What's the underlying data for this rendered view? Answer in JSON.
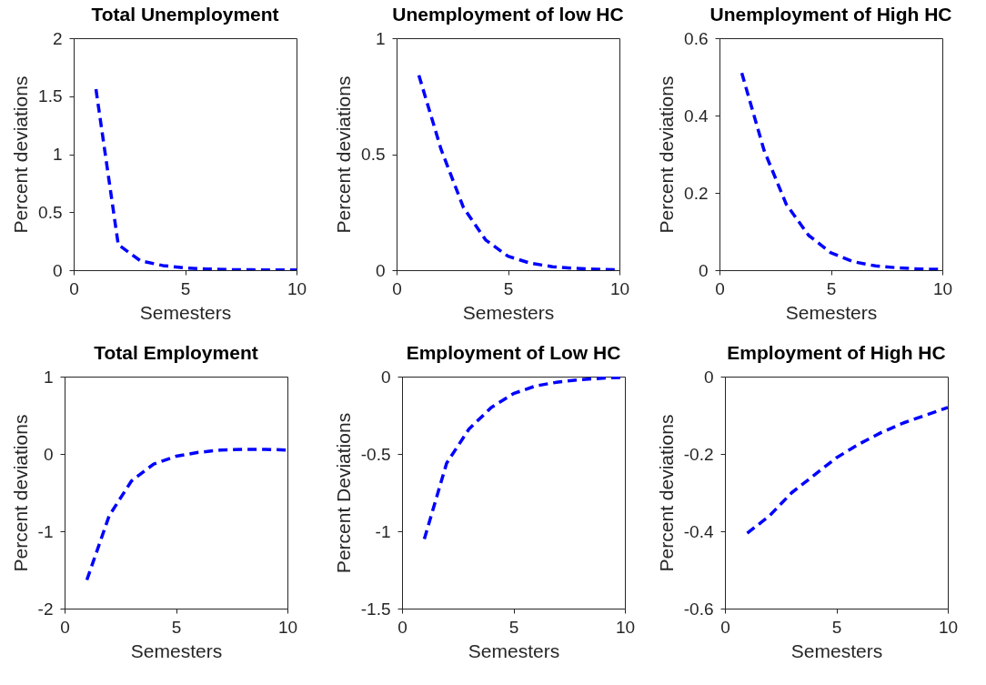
{
  "chart_data": [
    {
      "type": "line",
      "title": "Total Unemployment",
      "xlabel": "Semesters",
      "ylabel": "Percent deviations",
      "x": [
        1,
        2,
        3,
        4,
        5,
        6,
        7,
        8,
        9,
        10
      ],
      "series": [
        {
          "color": "#0000ff",
          "values": [
            1.56,
            0.22,
            0.08,
            0.04,
            0.02,
            0.01,
            0.005,
            0.003,
            0.002,
            0.001
          ]
        }
      ],
      "xlim": [
        0,
        10
      ],
      "xticks": [
        0,
        5,
        10
      ],
      "ylim": [
        0,
        2
      ],
      "yticks": [
        0,
        0.5,
        1,
        1.5,
        2
      ],
      "line_style": "dashed"
    },
    {
      "type": "line",
      "title": "Unemployment of low HC",
      "xlabel": "Semesters",
      "ylabel": "Percent deviations",
      "x": [
        1,
        2,
        3,
        4,
        5,
        6,
        7,
        8,
        9,
        10
      ],
      "series": [
        {
          "color": "#0000ff",
          "values": [
            0.84,
            0.52,
            0.27,
            0.13,
            0.06,
            0.03,
            0.015,
            0.008,
            0.004,
            0.002
          ]
        }
      ],
      "xlim": [
        0,
        10
      ],
      "xticks": [
        0,
        5,
        10
      ],
      "ylim": [
        0,
        1
      ],
      "yticks": [
        0,
        0.5,
        1
      ],
      "line_style": "dashed"
    },
    {
      "type": "line",
      "title": "Unemployment of High HC",
      "xlabel": "Semesters",
      "ylabel": "Percent deviations",
      "x": [
        1,
        2,
        3,
        4,
        5,
        6,
        7,
        8,
        9,
        10
      ],
      "series": [
        {
          "color": "#0000ff",
          "values": [
            0.51,
            0.31,
            0.17,
            0.09,
            0.045,
            0.022,
            0.011,
            0.006,
            0.003,
            0.002
          ]
        }
      ],
      "xlim": [
        0,
        10
      ],
      "xticks": [
        0,
        5,
        10
      ],
      "ylim": [
        0,
        0.6
      ],
      "yticks": [
        0,
        0.2,
        0.4,
        0.6
      ],
      "line_style": "dashed"
    },
    {
      "type": "line",
      "title": "Total Employment",
      "xlabel": "Semesters",
      "ylabel": "Percent deviations",
      "x": [
        1,
        2,
        3,
        4,
        5,
        6,
        7,
        8,
        9,
        10
      ],
      "series": [
        {
          "color": "#0000ff",
          "values": [
            -1.63,
            -0.8,
            -0.35,
            -0.13,
            -0.03,
            0.02,
            0.05,
            0.06,
            0.06,
            0.05
          ]
        }
      ],
      "xlim": [
        0,
        10
      ],
      "xticks": [
        0,
        5,
        10
      ],
      "ylim": [
        -2,
        1
      ],
      "yticks": [
        -2,
        -1,
        0,
        1
      ],
      "line_style": "dashed"
    },
    {
      "type": "line",
      "title": "Employment of Low HC",
      "xlabel": "Semesters",
      "ylabel": "Percent Deviations",
      "x": [
        1,
        2,
        3,
        4,
        5,
        6,
        7,
        8,
        9,
        10
      ],
      "series": [
        {
          "color": "#0000ff",
          "values": [
            -1.05,
            -0.56,
            -0.34,
            -0.2,
            -0.11,
            -0.06,
            -0.035,
            -0.02,
            -0.01,
            -0.005
          ]
        }
      ],
      "xlim": [
        0,
        10
      ],
      "xticks": [
        0,
        5,
        10
      ],
      "ylim": [
        -1.5,
        0
      ],
      "yticks": [
        -1.5,
        -1,
        -0.5,
        0
      ],
      "line_style": "dashed"
    },
    {
      "type": "line",
      "title": "Employment of High HC",
      "xlabel": "Semesters",
      "ylabel": "Percent deviations",
      "x": [
        1,
        2,
        3,
        4,
        5,
        6,
        7,
        8,
        9,
        10
      ],
      "series": [
        {
          "color": "#0000ff",
          "values": [
            -0.405,
            -0.36,
            -0.3,
            -0.255,
            -0.21,
            -0.175,
            -0.145,
            -0.12,
            -0.1,
            -0.08
          ]
        }
      ],
      "xlim": [
        0,
        10
      ],
      "xticks": [
        0,
        5,
        10
      ],
      "ylim": [
        -0.6,
        0
      ],
      "yticks": [
        -0.6,
        -0.4,
        -0.2,
        0
      ],
      "line_style": "dashed"
    }
  ]
}
